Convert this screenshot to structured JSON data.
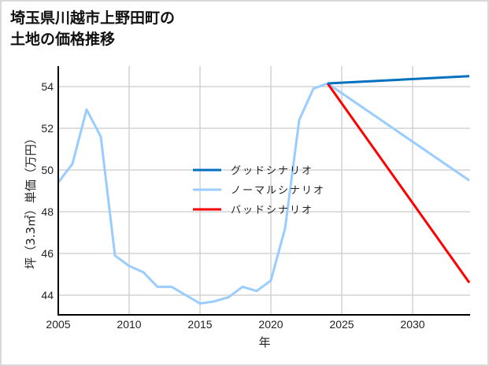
{
  "title": {
    "line1": "埼玉県川越市上野田町の",
    "line2": "土地の価格推移"
  },
  "chart_data": {
    "type": "line",
    "title": "埼玉県川越市上野田町の土地の価格推移",
    "xlabel": "年",
    "ylabel": "坪（3.3㎡）単価（万円）",
    "xlim": [
      2005,
      2034
    ],
    "ylim": [
      43.1,
      55.1
    ],
    "x_ticks": [
      2005,
      2010,
      2015,
      2020,
      2025,
      2030
    ],
    "y_ticks": [
      44,
      46,
      48,
      50,
      52,
      54
    ],
    "grid": true,
    "legend_position": "center",
    "series": [
      {
        "name": "グッドシナリオ",
        "color": "#0070c0",
        "x": [
          2024,
          2034
        ],
        "values": [
          54.15,
          54.5
        ]
      },
      {
        "name": "ノーマルシナリオ",
        "color": "#99ccff",
        "x": [
          2005,
          2006,
          2007,
          2008,
          2009,
          2010,
          2011,
          2012,
          2013,
          2014,
          2015,
          2016,
          2017,
          2018,
          2019,
          2020,
          2021,
          2022,
          2023,
          2024,
          2034
        ],
        "values": [
          49.4,
          50.3,
          52.9,
          51.6,
          45.9,
          45.4,
          45.1,
          44.4,
          44.4,
          44.0,
          43.6,
          43.7,
          43.9,
          44.4,
          44.2,
          44.7,
          47.2,
          52.4,
          53.9,
          54.15,
          49.5
        ]
      },
      {
        "name": "バッドシナリオ",
        "color": "#ff0000",
        "x": [
          2024,
          2034
        ],
        "values": [
          54.15,
          44.6
        ]
      }
    ]
  }
}
